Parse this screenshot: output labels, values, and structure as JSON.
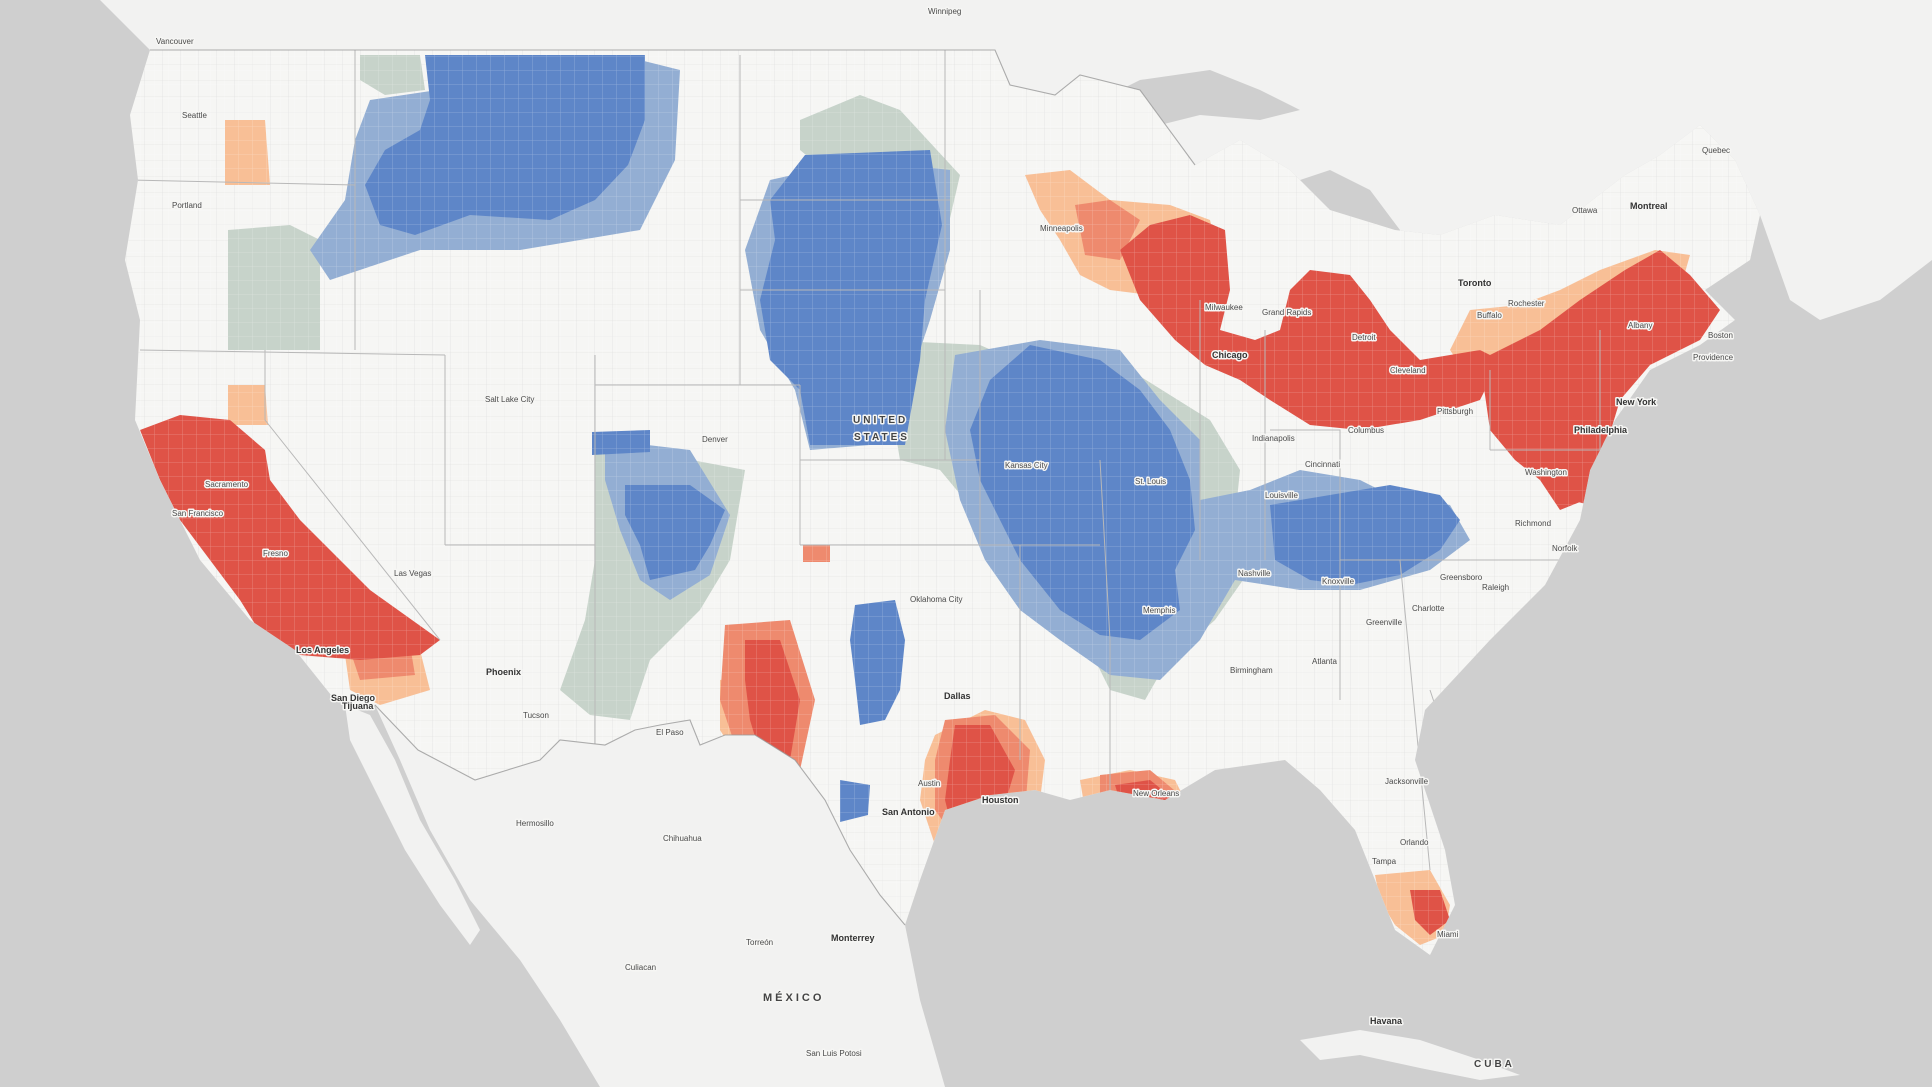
{
  "colors": {
    "water": "#cfcfcf",
    "land_us": "#f6f6f4",
    "land_other": "#f2f2f1",
    "state_border": "#b8b8b8",
    "county_line": "#d8d8d8",
    "dark_red": "#df5347",
    "light_red": "#ee8a6e",
    "peach": "#f8bf96",
    "dark_blue": "#5e86c8",
    "light_blue": "#93aed3",
    "gray_green": "#c7d3ca"
  },
  "labels": {
    "country_us_line1": "UNITED",
    "country_us_line2": "STATES",
    "country_mexico": "MÉXICO",
    "country_cuba": "CUBA",
    "cities": {
      "winnipeg": "Winnipeg",
      "vancouver": "Vancouver",
      "seattle": "Seattle",
      "portland": "Portland",
      "quebec": "Quebec",
      "ottawa": "Ottawa",
      "montreal": "Montreal",
      "toronto": "Toronto",
      "rochester": "Rochester",
      "buffalo": "Buffalo",
      "minneapolis": "Minneapolis",
      "milwaukee": "Milwaukee",
      "grand_rapids": "Grand Rapids",
      "detroit": "Detroit",
      "chicago": "Chicago",
      "cleveland": "Cleveland",
      "albany": "Albany",
      "boston": "Boston",
      "providence": "Providence",
      "pittsburgh": "Pittsburgh",
      "columbus": "Columbus",
      "new_york": "New York",
      "philadelphia": "Philadelphia",
      "indianapolis": "Indianapolis",
      "cincinnati": "Cincinnati",
      "washington": "Washington",
      "salt_lake_city": "Salt Lake City",
      "denver": "Denver",
      "kansas_city": "Kansas City",
      "st_louis": "St. Louis",
      "louisville": "Louisville",
      "richmond": "Richmond",
      "sacramento": "Sacramento",
      "san_francisco": "San Francisco",
      "fresno": "Fresno",
      "las_vegas": "Las Vegas",
      "nashville": "Nashville",
      "knoxville": "Knoxville",
      "greensboro": "Greensboro",
      "raleigh": "Raleigh",
      "norfolk": "Norfolk",
      "los_angeles": "Los Angeles",
      "oklahoma_city": "Oklahoma City",
      "memphis": "Memphis",
      "charlotte": "Charlotte",
      "greenville": "Greenville",
      "phoenix": "Phoenix",
      "san_diego": "San Diego",
      "tijuana": "Tijuana",
      "tucson": "Tucson",
      "birmingham": "Birmingham",
      "atlanta": "Atlanta",
      "dallas": "Dallas",
      "el_paso": "El Paso",
      "jacksonville": "Jacksonville",
      "austin": "Austin",
      "houston": "Houston",
      "new_orleans": "New Orleans",
      "san_antonio": "San Antonio",
      "hermosillo": "Hermosillo",
      "chihuahua": "Chihuahua",
      "orlando": "Orlando",
      "tampa": "Tampa",
      "miami": "Miami",
      "monterrey": "Monterrey",
      "torreon": "Torreón",
      "culiacan": "Culiacan",
      "havana": "Havana",
      "san_luis_potosi": "San Luis Potosi"
    }
  }
}
